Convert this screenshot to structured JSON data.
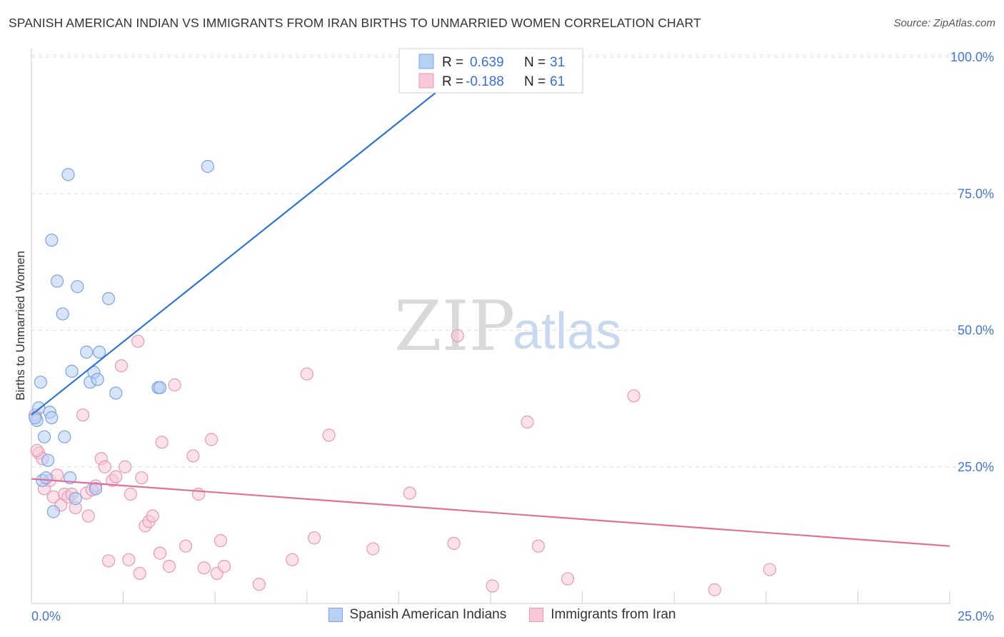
{
  "header": {
    "title": "SPANISH AMERICAN INDIAN VS IMMIGRANTS FROM IRAN BIRTHS TO UNMARRIED WOMEN CORRELATION CHART",
    "source": "Source: ZipAtlas.com"
  },
  "watermark": {
    "zip": "ZIP",
    "atlas": "atlas"
  },
  "legend": {
    "rows": [
      {
        "r_label": "R =",
        "r_value": "0.639",
        "n_label": "N =",
        "n_value": "31"
      },
      {
        "r_label": "R =",
        "r_value": "-0.188",
        "n_label": "N =",
        "n_value": "61"
      }
    ]
  },
  "bottom_legend": {
    "series1": "Spanish American Indians",
    "series2": "Immigrants from Iran"
  },
  "colors": {
    "blue_fill": "#b8d0f4",
    "blue_stroke": "#7ba3e0",
    "blue_line": "#2f74d0",
    "pink_fill": "#f8c8d8",
    "pink_stroke": "#e898b4",
    "pink_line": "#e0709a",
    "tick": "#4477cc",
    "grid": "#dddddd"
  },
  "chart_data": {
    "type": "scatter",
    "title": "SPANISH AMERICAN INDIAN VS IMMIGRANTS FROM IRAN BIRTHS TO UNMARRIED WOMEN CORRELATION CHART",
    "xlabel": "",
    "ylabel": "Births to Unmarried Women",
    "xlim": [
      0,
      25
    ],
    "ylim": [
      0,
      102
    ],
    "x_ticks": [
      "0.0%",
      "25.0%"
    ],
    "y_ticks": [
      "25.0%",
      "50.0%",
      "75.0%",
      "100.0%"
    ],
    "y_tick_values": [
      25,
      50,
      75,
      100
    ],
    "series": [
      {
        "name": "Spanish American Indians",
        "r": 0.639,
        "n": 31,
        "trend": {
          "x": [
            0,
            12.5
          ],
          "y": [
            34.5,
            101.5
          ]
        },
        "points": [
          [
            0.15,
            33.5
          ],
          [
            0.2,
            35.8
          ],
          [
            0.25,
            40.5
          ],
          [
            0.3,
            22.5
          ],
          [
            0.35,
            30.5
          ],
          [
            0.45,
            26.2
          ],
          [
            0.5,
            35
          ],
          [
            0.55,
            66.5
          ],
          [
            0.6,
            16.8
          ],
          [
            0.7,
            59
          ],
          [
            0.85,
            53
          ],
          [
            0.9,
            30.5
          ],
          [
            1.0,
            78.5
          ],
          [
            1.05,
            23
          ],
          [
            1.1,
            42.5
          ],
          [
            1.2,
            19.2
          ],
          [
            1.25,
            58
          ],
          [
            1.5,
            46
          ],
          [
            1.6,
            40.5
          ],
          [
            1.7,
            42.3
          ],
          [
            1.75,
            21
          ],
          [
            1.8,
            41
          ],
          [
            1.85,
            46
          ],
          [
            2.1,
            55.8
          ],
          [
            2.3,
            38.5
          ],
          [
            3.45,
            39.5
          ],
          [
            3.5,
            39.5
          ],
          [
            4.8,
            80
          ],
          [
            0.1,
            34
          ],
          [
            0.55,
            34
          ],
          [
            0.4,
            23
          ]
        ]
      },
      {
        "name": "Immigrants from Iran",
        "r": -0.188,
        "n": 61,
        "trend": {
          "x": [
            0,
            25
          ],
          "y": [
            22.8,
            10.5
          ]
        },
        "points": [
          [
            0.2,
            27.5
          ],
          [
            0.3,
            26.5
          ],
          [
            0.35,
            21
          ],
          [
            0.5,
            22.5
          ],
          [
            0.6,
            19.5
          ],
          [
            0.7,
            23.5
          ],
          [
            0.8,
            18
          ],
          [
            0.9,
            20
          ],
          [
            1.0,
            19.5
          ],
          [
            1.1,
            20
          ],
          [
            1.2,
            17.5
          ],
          [
            1.4,
            34.5
          ],
          [
            1.5,
            20.2
          ],
          [
            1.55,
            16
          ],
          [
            1.65,
            20.8
          ],
          [
            1.75,
            21.5
          ],
          [
            1.9,
            26.5
          ],
          [
            2.0,
            25
          ],
          [
            2.1,
            7.8
          ],
          [
            2.2,
            22.5
          ],
          [
            2.3,
            23.2
          ],
          [
            2.45,
            43.5
          ],
          [
            2.55,
            25
          ],
          [
            2.65,
            8
          ],
          [
            2.7,
            20
          ],
          [
            2.9,
            48
          ],
          [
            2.95,
            5.5
          ],
          [
            3.0,
            23
          ],
          [
            3.1,
            14.2
          ],
          [
            3.2,
            15
          ],
          [
            3.3,
            16
          ],
          [
            3.5,
            9.2
          ],
          [
            3.55,
            29.5
          ],
          [
            3.75,
            6.8
          ],
          [
            3.9,
            40
          ],
          [
            4.2,
            10.5
          ],
          [
            4.4,
            27
          ],
          [
            4.55,
            20
          ],
          [
            4.7,
            6.5
          ],
          [
            4.9,
            30
          ],
          [
            5.05,
            5.5
          ],
          [
            5.15,
            11.5
          ],
          [
            5.25,
            6.8
          ],
          [
            6.2,
            3.5
          ],
          [
            7.1,
            8
          ],
          [
            7.5,
            42
          ],
          [
            7.7,
            12
          ],
          [
            8.1,
            30.8
          ],
          [
            9.3,
            10
          ],
          [
            10.3,
            20.2
          ],
          [
            11.5,
            11
          ],
          [
            11.6,
            49
          ],
          [
            12.55,
            3.2
          ],
          [
            13.5,
            33.2
          ],
          [
            13.8,
            10.5
          ],
          [
            14.6,
            4.5
          ],
          [
            16.4,
            38
          ],
          [
            18.6,
            2.5
          ],
          [
            20.1,
            6.2
          ],
          [
            0.1,
            34.5
          ],
          [
            0.15,
            28
          ]
        ]
      }
    ]
  }
}
